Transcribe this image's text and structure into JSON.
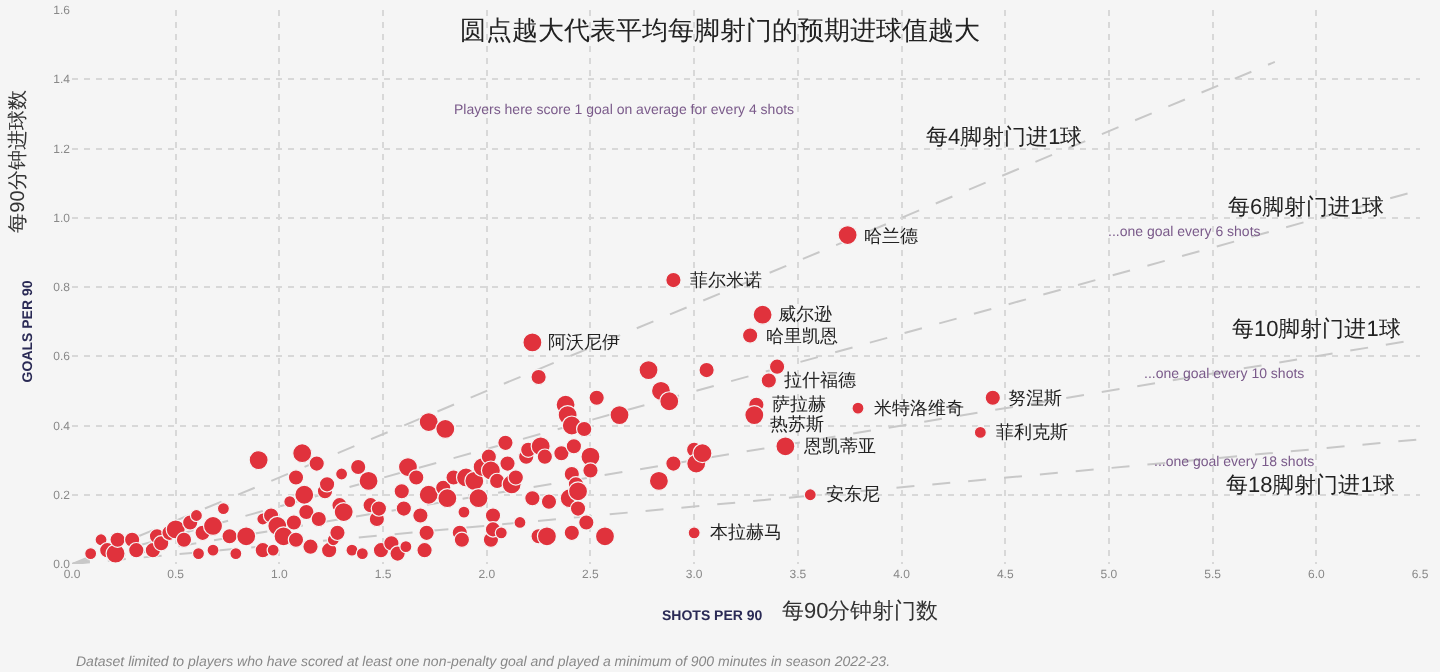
{
  "chart_data": {
    "type": "bubble",
    "title": "圆点越大代表平均每脚射门的预期进球值越大",
    "xlabel": "SHOTS PER 90",
    "ylabel": "GOALS PER 90",
    "xlim": [
      0,
      6.5
    ],
    "xticks": [
      {
        "value": 0,
        "label": "0.0"
      },
      0.5,
      {
        "value": 1,
        "label": "1.0"
      },
      1.5,
      {
        "value": 2,
        "label": "2.0"
      },
      2.5,
      {
        "value": 3,
        "label": "3.0"
      },
      3.5,
      {
        "value": 4,
        "label": "4.0"
      },
      4.5,
      {
        "value": 5,
        "label": "5.0"
      },
      5.5,
      {
        "value": 6,
        "label": "6.0"
      },
      6.5
    ],
    "ylim": [
      0,
      1.6
    ],
    "yticks": [
      {
        "value": 0,
        "label": "0.0"
      },
      0.2,
      0.4,
      0.6,
      0.8,
      {
        "value": 1,
        "label": "1.0"
      },
      1.2,
      1.4,
      1.6
    ],
    "grid": true,
    "line_style": "dashed",
    "series": [
      {
        "type": "line",
        "color": "#c8c8c8",
        "x": [
          0,
          5.8
        ],
        "values": [
          0,
          1.45
        ]
      },
      {
        "type": "line",
        "color": "#c8c8c8",
        "x": [
          0,
          6.5
        ],
        "values": [
          0,
          1.08
        ]
      },
      {
        "type": "line",
        "color": "#c8c8c8",
        "x": [
          0,
          6.5
        ],
        "values": [
          0,
          0.65
        ]
      },
      {
        "type": "line",
        "color": "#c8c8c8",
        "x": [
          0,
          6.5
        ],
        "values": [
          0,
          0.36
        ]
      },
      {
        "color": "#e0323c",
        "marker": "circle",
        "x": [
          3.74,
          2.9,
          3.33,
          3.27,
          2.22,
          3.4,
          3.36,
          3.3,
          3.29,
          3.79,
          4.44,
          4.38,
          3.44,
          3.56,
          3.0,
          0.09,
          0.14,
          0.17,
          0.21,
          0.22,
          0.29,
          0.31,
          0.39,
          0.41,
          0.43,
          0.47,
          0.5,
          0.54,
          0.57,
          0.6,
          0.61,
          0.63,
          0.68,
          0.68,
          0.73,
          0.76,
          0.79,
          0.84,
          0.9,
          0.92,
          0.92,
          0.96,
          0.97,
          0.99,
          1.02,
          1.05,
          1.07,
          1.08,
          1.08,
          1.11,
          1.12,
          1.13,
          1.15,
          1.18,
          1.19,
          1.22,
          1.23,
          1.24,
          1.26,
          1.28,
          1.29,
          1.31,
          1.3,
          1.35,
          1.38,
          1.4,
          1.43,
          1.44,
          1.47,
          1.48,
          1.49,
          1.54,
          1.57,
          1.59,
          1.6,
          1.62,
          1.61,
          1.66,
          1.68,
          1.7,
          1.71,
          1.72,
          1.72,
          1.79,
          1.8,
          1.81,
          1.84,
          1.87,
          1.88,
          1.89,
          1.9,
          1.94,
          1.96,
          1.98,
          2.01,
          2.02,
          2.02,
          2.03,
          2.03,
          2.05,
          2.07,
          2.09,
          2.1,
          2.12,
          2.14,
          2.16,
          2.19,
          2.2,
          2.22,
          2.25,
          2.25,
          2.26,
          2.28,
          2.29,
          2.3,
          2.36,
          2.38,
          2.39,
          2.4,
          2.41,
          2.41,
          2.41,
          2.42,
          2.43,
          2.44,
          2.44,
          2.47,
          2.48,
          2.5,
          2.5,
          2.53,
          2.57,
          2.64,
          2.78,
          2.83,
          2.84,
          2.88,
          2.9,
          3.0,
          3.01,
          3.04,
          3.06
        ],
        "values": [
          0.95,
          0.82,
          0.72,
          0.66,
          0.64,
          0.57,
          0.53,
          0.46,
          0.43,
          0.45,
          0.48,
          0.38,
          0.34,
          0.2,
          0.09,
          0.03,
          0.07,
          0.04,
          0.03,
          0.07,
          0.07,
          0.04,
          0.04,
          0.08,
          0.06,
          0.09,
          0.1,
          0.07,
          0.12,
          0.14,
          0.03,
          0.09,
          0.11,
          0.04,
          0.16,
          0.08,
          0.03,
          0.08,
          0.3,
          0.13,
          0.04,
          0.14,
          0.04,
          0.11,
          0.08,
          0.18,
          0.12,
          0.25,
          0.07,
          0.32,
          0.2,
          0.15,
          0.05,
          0.29,
          0.13,
          0.21,
          0.23,
          0.04,
          0.07,
          0.09,
          0.17,
          0.15,
          0.26,
          0.04,
          0.28,
          0.03,
          0.24,
          0.17,
          0.13,
          0.16,
          0.04,
          0.06,
          0.03,
          0.21,
          0.16,
          0.28,
          0.05,
          0.25,
          0.14,
          0.04,
          0.09,
          0.41,
          0.2,
          0.22,
          0.39,
          0.19,
          0.25,
          0.09,
          0.07,
          0.15,
          0.25,
          0.24,
          0.19,
          0.28,
          0.31,
          0.27,
          0.07,
          0.14,
          0.1,
          0.24,
          0.09,
          0.35,
          0.29,
          0.23,
          0.25,
          0.12,
          0.31,
          0.33,
          0.19,
          0.54,
          0.08,
          0.34,
          0.31,
          0.08,
          0.18,
          0.32,
          0.46,
          0.43,
          0.19,
          0.26,
          0.4,
          0.09,
          0.34,
          0.23,
          0.21,
          0.16,
          0.39,
          0.12,
          0.31,
          0.27,
          0.48,
          0.08,
          0.43,
          0.56,
          0.24,
          0.5,
          0.47,
          0.29,
          0.33,
          0.29,
          0.32,
          0.56
        ],
        "sizes": [
          1,
          0.65,
          1,
          0.65,
          1,
          0.65,
          0.65,
          0.65,
          1,
          0.4,
          0.65,
          0.4,
          1,
          0.4,
          0.4,
          0.4,
          0.4,
          0.65,
          1,
          0.65,
          0.65,
          0.65,
          0.65,
          0.65,
          0.65,
          0.65,
          1,
          0.65,
          0.65,
          0.4,
          0.4,
          0.65,
          1,
          0.4,
          0.4,
          0.65,
          0.4,
          1,
          1,
          0.4,
          0.65,
          0.65,
          0.4,
          1,
          1,
          0.4,
          0.65,
          0.65,
          0.65,
          1,
          1,
          0.65,
          0.65,
          0.65,
          0.65,
          0.65,
          0.65,
          0.65,
          0.4,
          0.65,
          0.65,
          1,
          0.4,
          0.4,
          0.65,
          0.4,
          1,
          0.65,
          0.65,
          0.65,
          0.65,
          0.65,
          0.65,
          0.65,
          0.65,
          1,
          0.4,
          0.65,
          0.65,
          0.65,
          0.65,
          1,
          1,
          0.65,
          1,
          1,
          0.65,
          0.65,
          0.65,
          0.4,
          1,
          1,
          1,
          1,
          0.65,
          1,
          0.65,
          0.65,
          0.65,
          0.65,
          0.4,
          0.65,
          0.65,
          1,
          0.65,
          0.4,
          0.65,
          0.65,
          0.65,
          0.65,
          0.65,
          1,
          0.65,
          1,
          0.65,
          0.65,
          1,
          1,
          1,
          0.65,
          1,
          0.65,
          0.65,
          0.65,
          1,
          0.65,
          0.65,
          0.65,
          1,
          0.65,
          0.65,
          1,
          1,
          1,
          1,
          1,
          1,
          0.65,
          0.65,
          1,
          1,
          0.65
        ]
      }
    ],
    "annotations": [
      {
        "text": "哈兰德",
        "x": 3.74,
        "y": 0.95
      },
      {
        "text": "菲尔米诺",
        "x": 2.9,
        "y": 0.82
      },
      {
        "text": "威尔逊",
        "x": 3.33,
        "y": 0.72
      },
      {
        "text": "哈里凯恩",
        "x": 3.27,
        "y": 0.66
      },
      {
        "text": "阿沃尼伊",
        "x": 2.22,
        "y": 0.64
      },
      {
        "text": "拉什福德",
        "x": 3.36,
        "y": 0.53
      },
      {
        "text": "萨拉赫",
        "x": 3.3,
        "y": 0.46
      },
      {
        "text": "热苏斯",
        "x": 3.29,
        "y": 0.43
      },
      {
        "text": "米特洛维奇",
        "x": 3.79,
        "y": 0.45
      },
      {
        "text": "努涅斯",
        "x": 4.44,
        "y": 0.48
      },
      {
        "text": "菲利克斯",
        "x": 4.38,
        "y": 0.38
      },
      {
        "text": "恩凯蒂亚",
        "x": 3.44,
        "y": 0.34
      },
      {
        "text": "安东尼",
        "x": 3.56,
        "y": 0.2
      },
      {
        "text": "本拉赫马",
        "x": 3.0,
        "y": 0.09
      },
      "每4脚射门进1球",
      "每6脚射门进1球",
      "每10脚射门进1球",
      "每18脚射门进1球",
      "Players here score 1 goal on average for every 4 shots",
      "...one goal every 6 shots",
      "...one goal every 10 shots",
      "...one goal every 18 shots",
      "每90分钟进球数",
      "每90分钟射门数",
      "Dataset limited to players who have scored at least one non-penalty goal and played a minimum of 900 minutes in season 2022-23."
    ]
  }
}
